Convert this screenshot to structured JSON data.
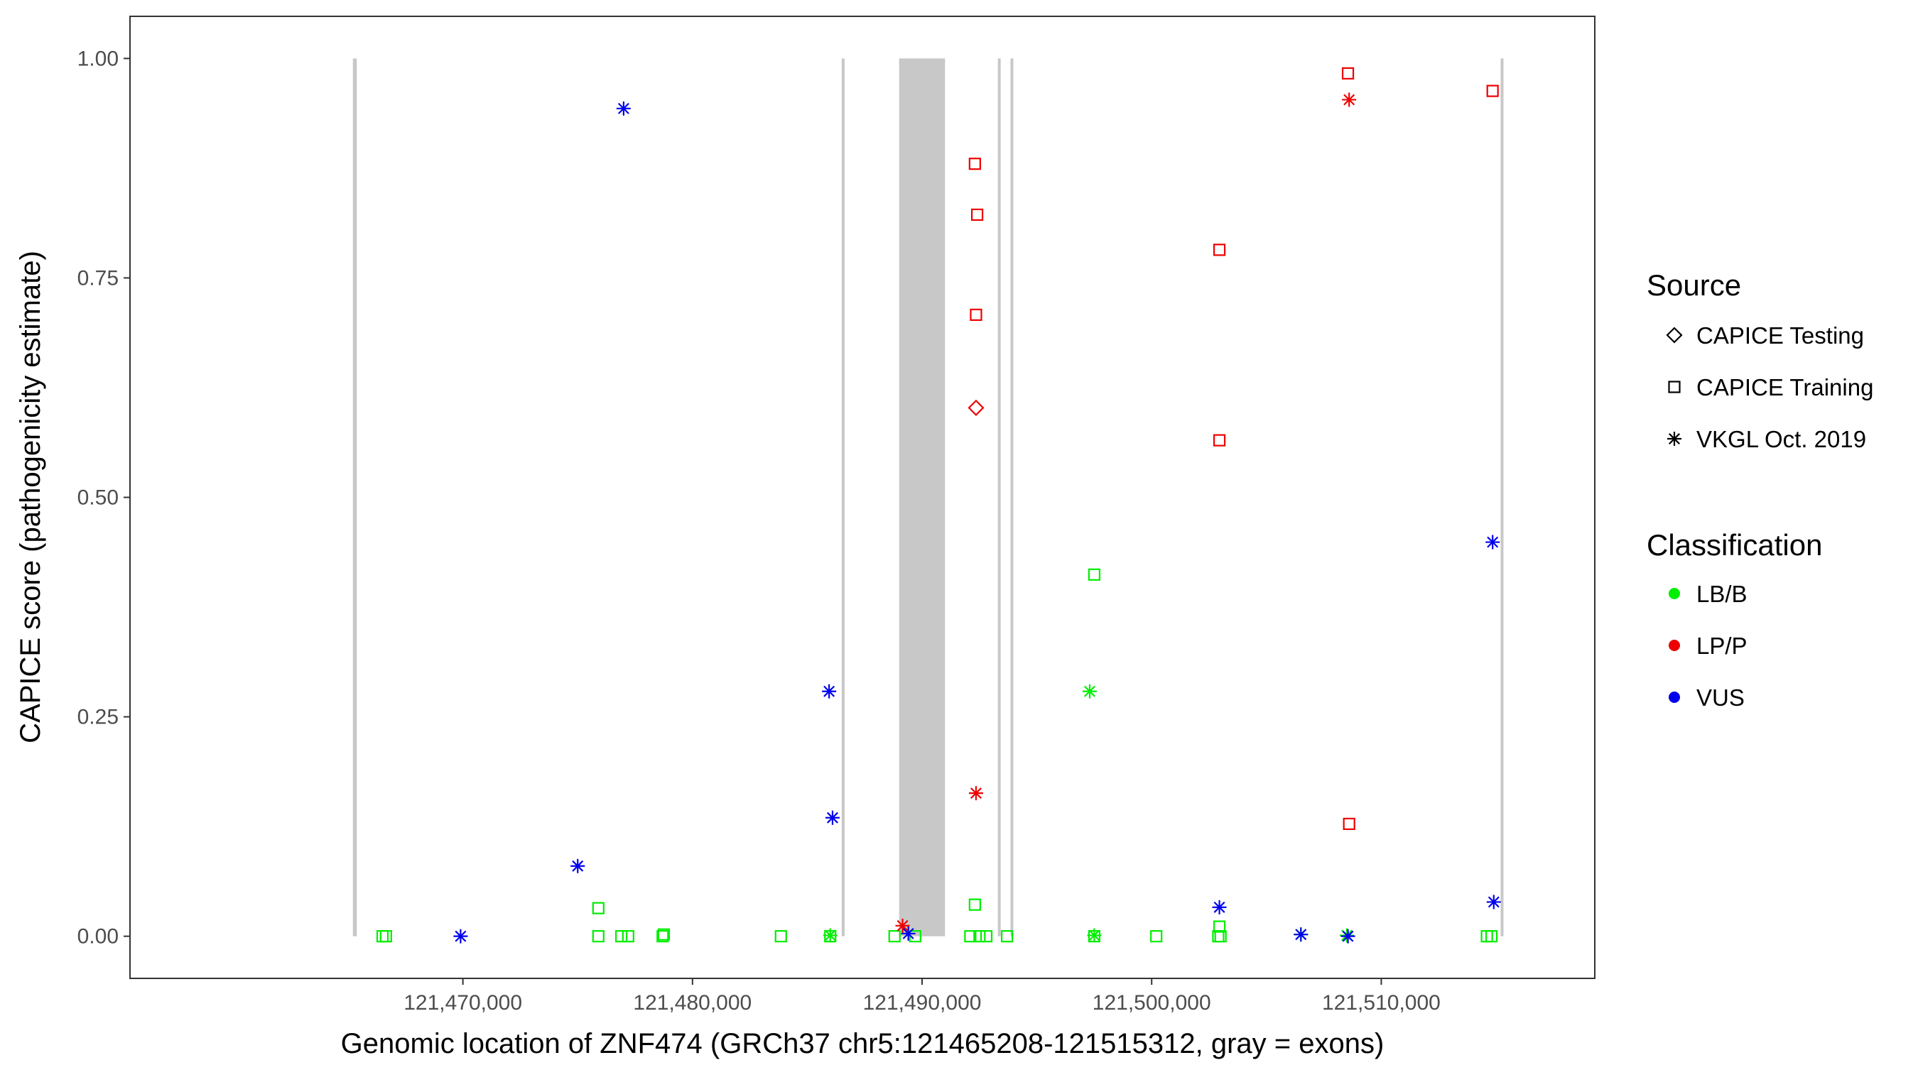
{
  "chart_data": {
    "type": "scatter",
    "title": "",
    "xlabel": "Genomic location of ZNF474 (GRCh37 chr5:121465208-121515312, gray = exons)",
    "ylabel": "CAPICE score (pathogenicity estimate)",
    "xlim": [
      121455500,
      121519300
    ],
    "ylim": [
      -0.048,
      1.048
    ],
    "grid": false,
    "x_ticks": [
      121470000,
      121480000,
      121490000,
      121500000,
      121510000
    ],
    "x_tick_labels": [
      "121,470,000",
      "121,480,000",
      "121,490,000",
      "121,500,000",
      "121,510,000"
    ],
    "y_ticks": [
      0,
      0.25,
      0.5,
      0.75,
      1.0
    ],
    "y_tick_labels": [
      "0.00",
      "0.25",
      "0.50",
      "0.75",
      "1.00"
    ],
    "exons": [
      [
        121465208,
        121465380
      ],
      [
        121486500,
        121486560
      ],
      [
        121489000,
        121491000
      ],
      [
        121493300,
        121493400
      ],
      [
        121493850,
        121493950
      ],
      [
        121515200,
        121515312
      ]
    ],
    "exon_color": "#c8c8c8",
    "colors": {
      "LB/B": "#00ee00",
      "LP/P": "#ee0000",
      "VUS": "#0000ee"
    },
    "legend": {
      "placement": "right",
      "source_title": "Source",
      "source_items": [
        {
          "label": "CAPICE Testing",
          "shape": "diamond"
        },
        {
          "label": "CAPICE Training",
          "shape": "square"
        },
        {
          "label": "VKGL Oct. 2019",
          "shape": "asterisk"
        }
      ],
      "class_title": "Classification",
      "class_items": [
        {
          "label": "LB/B"
        },
        {
          "label": "LP/P"
        },
        {
          "label": "VUS"
        }
      ]
    },
    "points": [
      {
        "x": 121466500,
        "y": 0.0,
        "source": "CAPICE Training",
        "class": "LB/B"
      },
      {
        "x": 121466650,
        "y": 0.0,
        "source": "CAPICE Training",
        "class": "LB/B"
      },
      {
        "x": 121475900,
        "y": 0.032,
        "source": "CAPICE Training",
        "class": "LB/B"
      },
      {
        "x": 121475900,
        "y": 0.0,
        "source": "CAPICE Training",
        "class": "LB/B"
      },
      {
        "x": 121476900,
        "y": 0.0,
        "source": "CAPICE Training",
        "class": "LB/B"
      },
      {
        "x": 121477200,
        "y": 0.0,
        "source": "CAPICE Training",
        "class": "LB/B"
      },
      {
        "x": 121478700,
        "y": 0.0,
        "source": "CAPICE Training",
        "class": "LB/B"
      },
      {
        "x": 121478750,
        "y": 0.002,
        "source": "CAPICE Training",
        "class": "LB/B"
      },
      {
        "x": 121483850,
        "y": 0.0,
        "source": "CAPICE Training",
        "class": "LB/B"
      },
      {
        "x": 121486000,
        "y": 0.0,
        "source": "CAPICE Training",
        "class": "LB/B"
      },
      {
        "x": 121488800,
        "y": 0.0,
        "source": "CAPICE Training",
        "class": "LB/B"
      },
      {
        "x": 121489700,
        "y": 0.0,
        "source": "CAPICE Training",
        "class": "LB/B"
      },
      {
        "x": 121492100,
        "y": 0.0,
        "source": "CAPICE Training",
        "class": "LB/B"
      },
      {
        "x": 121492300,
        "y": 0.036,
        "source": "CAPICE Training",
        "class": "LB/B"
      },
      {
        "x": 121492500,
        "y": 0.0,
        "source": "CAPICE Training",
        "class": "LB/B"
      },
      {
        "x": 121492800,
        "y": 0.0,
        "source": "CAPICE Training",
        "class": "LB/B"
      },
      {
        "x": 121493700,
        "y": 0.0,
        "source": "CAPICE Training",
        "class": "LB/B"
      },
      {
        "x": 121497500,
        "y": 0.412,
        "source": "CAPICE Training",
        "class": "LB/B"
      },
      {
        "x": 121497500,
        "y": 0.0,
        "source": "CAPICE Training",
        "class": "LB/B"
      },
      {
        "x": 121500200,
        "y": 0.0,
        "source": "CAPICE Training",
        "class": "LB/B"
      },
      {
        "x": 121502900,
        "y": 0.0,
        "source": "CAPICE Training",
        "class": "LB/B"
      },
      {
        "x": 121502950,
        "y": 0.011,
        "source": "CAPICE Training",
        "class": "LB/B"
      },
      {
        "x": 121503000,
        "y": 0.0,
        "source": "CAPICE Training",
        "class": "LB/B"
      },
      {
        "x": 121514600,
        "y": 0.0,
        "source": "CAPICE Training",
        "class": "LB/B"
      },
      {
        "x": 121514800,
        "y": 0.0,
        "source": "CAPICE Training",
        "class": "LB/B"
      },
      {
        "x": 121492300,
        "y": 0.88,
        "source": "CAPICE Training",
        "class": "LP/P"
      },
      {
        "x": 121492400,
        "y": 0.822,
        "source": "CAPICE Training",
        "class": "LP/P"
      },
      {
        "x": 121492350,
        "y": 0.708,
        "source": "CAPICE Training",
        "class": "LP/P"
      },
      {
        "x": 121502950,
        "y": 0.782,
        "source": "CAPICE Training",
        "class": "LP/P"
      },
      {
        "x": 121502950,
        "y": 0.565,
        "source": "CAPICE Training",
        "class": "LP/P"
      },
      {
        "x": 121508550,
        "y": 0.983,
        "source": "CAPICE Training",
        "class": "LP/P"
      },
      {
        "x": 121508600,
        "y": 0.128,
        "source": "CAPICE Training",
        "class": "LP/P"
      },
      {
        "x": 121514850,
        "y": 0.963,
        "source": "CAPICE Training",
        "class": "LP/P"
      },
      {
        "x": 121492350,
        "y": 0.602,
        "source": "CAPICE Testing",
        "class": "LP/P"
      },
      {
        "x": 121497300,
        "y": 0.279,
        "source": "VKGL Oct. 2019",
        "class": "LB/B"
      },
      {
        "x": 121486000,
        "y": 0.001,
        "source": "VKGL Oct. 2019",
        "class": "LB/B"
      },
      {
        "x": 121497500,
        "y": 0.001,
        "source": "VKGL Oct. 2019",
        "class": "LB/B"
      },
      {
        "x": 121506500,
        "y": 0.002,
        "source": "VKGL Oct. 2019",
        "class": "LB/B"
      },
      {
        "x": 121508500,
        "y": 0.001,
        "source": "VKGL Oct. 2019",
        "class": "LB/B"
      },
      {
        "x": 121492350,
        "y": 0.163,
        "source": "VKGL Oct. 2019",
        "class": "LP/P"
      },
      {
        "x": 121508600,
        "y": 0.953,
        "source": "VKGL Oct. 2019",
        "class": "LP/P"
      },
      {
        "x": 121489150,
        "y": 0.012,
        "source": "VKGL Oct. 2019",
        "class": "LP/P"
      },
      {
        "x": 121477000,
        "y": 0.943,
        "source": "VKGL Oct. 2019",
        "class": "VUS"
      },
      {
        "x": 121469900,
        "y": 0.0,
        "source": "VKGL Oct. 2019",
        "class": "VUS"
      },
      {
        "x": 121475000,
        "y": 0.08,
        "source": "VKGL Oct. 2019",
        "class": "VUS"
      },
      {
        "x": 121485950,
        "y": 0.279,
        "source": "VKGL Oct. 2019",
        "class": "VUS"
      },
      {
        "x": 121486100,
        "y": 0.135,
        "source": "VKGL Oct. 2019",
        "class": "VUS"
      },
      {
        "x": 121489400,
        "y": 0.003,
        "source": "VKGL Oct. 2019",
        "class": "VUS"
      },
      {
        "x": 121502950,
        "y": 0.033,
        "source": "VKGL Oct. 2019",
        "class": "VUS"
      },
      {
        "x": 121506500,
        "y": 0.002,
        "source": "VKGL Oct. 2019",
        "class": "VUS"
      },
      {
        "x": 121508550,
        "y": 0.0,
        "source": "VKGL Oct. 2019",
        "class": "VUS"
      },
      {
        "x": 121514850,
        "y": 0.449,
        "source": "VKGL Oct. 2019",
        "class": "VUS"
      },
      {
        "x": 121514900,
        "y": 0.039,
        "source": "VKGL Oct. 2019",
        "class": "VUS"
      }
    ]
  }
}
